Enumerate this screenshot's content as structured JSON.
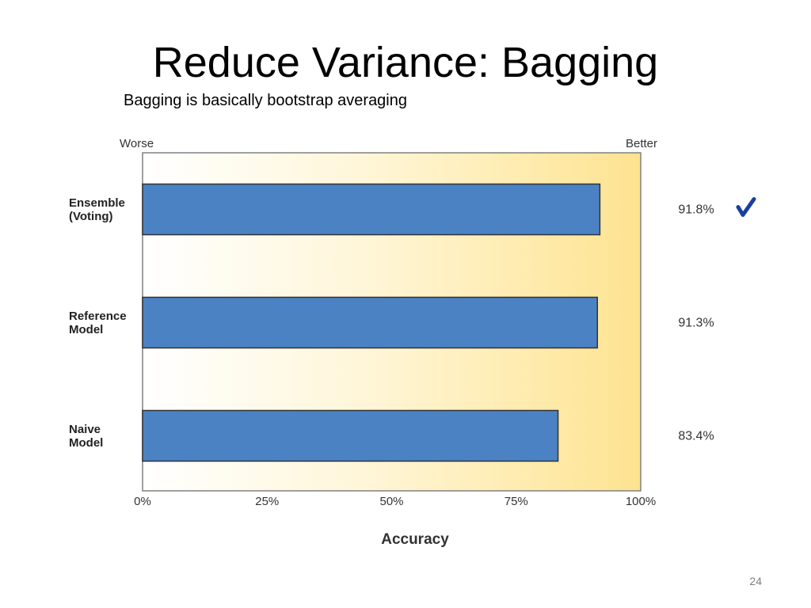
{
  "slide": {
    "title": "Reduce Variance: Bagging",
    "subtitle": "Bagging is basically bootstrap averaging",
    "page_number": "24"
  },
  "chart_data": {
    "type": "bar",
    "orientation": "horizontal",
    "categories": [
      [
        "Ensemble",
        "(Voting)"
      ],
      [
        "Reference",
        "Model"
      ],
      [
        "Naive",
        "Model"
      ]
    ],
    "values": [
      91.8,
      91.3,
      83.4
    ],
    "value_labels": [
      "91.8%",
      "91.3%",
      "83.4%"
    ],
    "xlabel": "Accuracy",
    "xlim": [
      0,
      100
    ],
    "x_ticks": [
      "0%",
      "25%",
      "50%",
      "75%",
      "100%"
    ],
    "scale_left_label": "Worse",
    "scale_right_label": "Better",
    "grid": false,
    "bar_color": "#4a82c4",
    "gradient_colors": [
      "#ffffff",
      "#fde390"
    ],
    "check_color": "#1a3fa0",
    "highlight_index": 0
  }
}
